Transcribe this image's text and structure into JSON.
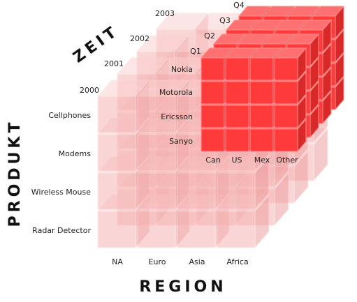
{
  "axes": {
    "time": "ZEIT",
    "product": "PRODUKT",
    "region": "REGION"
  },
  "years": [
    "2003",
    "2002",
    "2001",
    "2000"
  ],
  "quarters": [
    "Q4",
    "Q3",
    "Q2",
    "Q1"
  ],
  "brands": [
    "Nokia",
    "Motorola",
    "Ericsson",
    "Sanyo"
  ],
  "countries": [
    "Can",
    "US",
    "Mex",
    "Other"
  ],
  "products": [
    "Cellphones",
    "Modems",
    "Wireless Mouse",
    "Radar Detector"
  ],
  "regions": [
    "NA",
    "Euro",
    "Asia",
    "Africa"
  ]
}
